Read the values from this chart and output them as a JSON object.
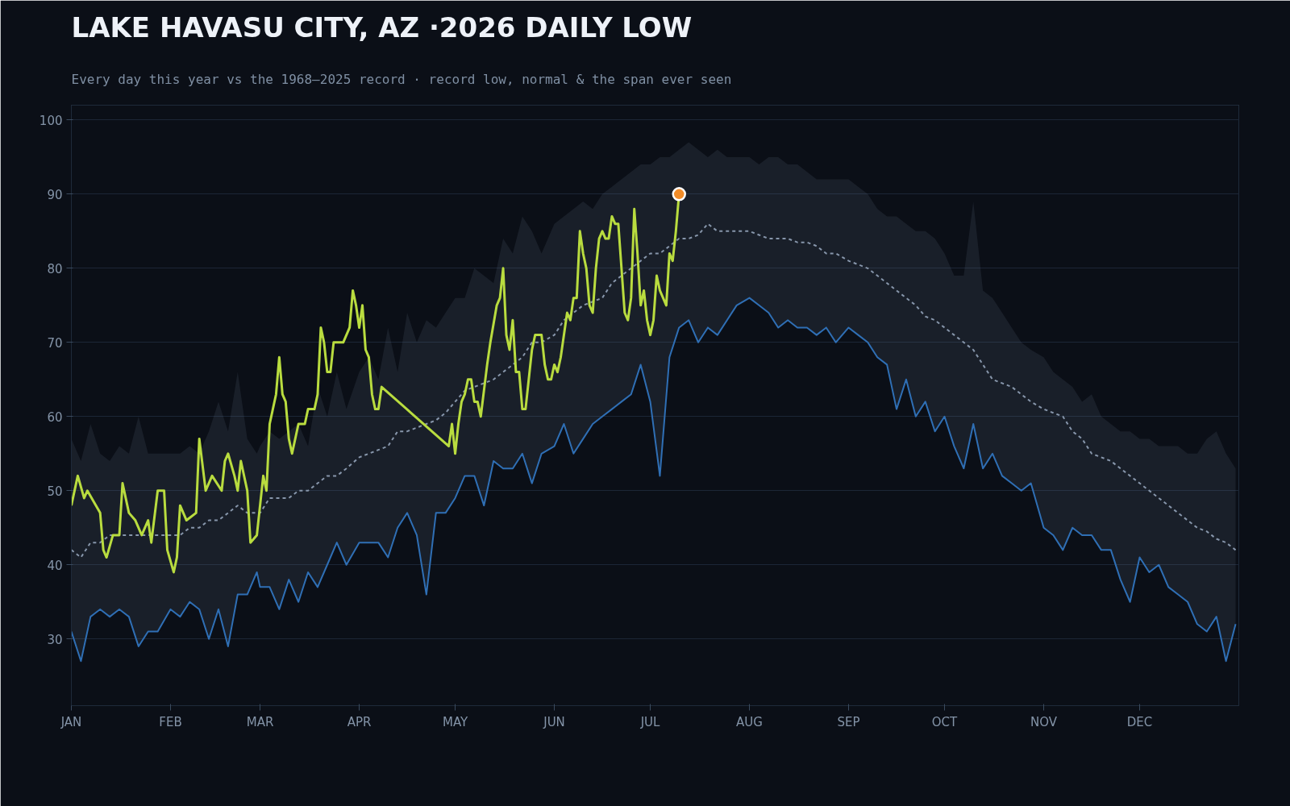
{
  "chart_data": {
    "type": "line",
    "title": "LAKE HAVASU CITY, AZ ·2026 DAILY LOW",
    "subtitle": "Every day this year vs the 1968–2025 record · record low, normal & the span ever seen",
    "xlim": [
      "2026-01-01",
      "2027-01-01"
    ],
    "ylim": [
      21,
      102
    ],
    "yticks": [
      30,
      40,
      50,
      60,
      70,
      80,
      90,
      100
    ],
    "xticks": [
      {
        "value": "2026-01-01",
        "label": "JAN"
      },
      {
        "value": "2026-02-01",
        "label": "FEB"
      },
      {
        "value": "2026-03-01",
        "label": "MAR"
      },
      {
        "value": "2026-04-01",
        "label": "APR"
      },
      {
        "value": "2026-05-01",
        "label": "MAY"
      },
      {
        "value": "2026-06-01",
        "label": "JUN"
      },
      {
        "value": "2026-07-01",
        "label": "JUL"
      },
      {
        "value": "2026-08-01",
        "label": "AUG"
      },
      {
        "value": "2026-09-01",
        "label": "SEP"
      },
      {
        "value": "2026-10-01",
        "label": "OCT"
      },
      {
        "value": "2026-11-01",
        "label": "NOV"
      },
      {
        "value": "2026-12-01",
        "label": "DEC"
      }
    ],
    "grid": "y",
    "x": [
      "2026-01-01",
      "2026-01-04",
      "2026-01-07",
      "2026-01-10",
      "2026-01-13",
      "2026-01-16",
      "2026-01-19",
      "2026-01-22",
      "2026-01-25",
      "2026-01-28",
      "2026-02-01",
      "2026-02-04",
      "2026-02-07",
      "2026-02-10",
      "2026-02-13",
      "2026-02-16",
      "2026-02-19",
      "2026-02-22",
      "2026-02-25",
      "2026-02-28",
      "2026-03-01",
      "2026-03-04",
      "2026-03-07",
      "2026-03-10",
      "2026-03-13",
      "2026-03-16",
      "2026-03-19",
      "2026-03-22",
      "2026-03-25",
      "2026-03-28",
      "2026-04-01",
      "2026-04-04",
      "2026-04-07",
      "2026-04-10",
      "2026-04-13",
      "2026-04-16",
      "2026-04-19",
      "2026-04-22",
      "2026-04-25",
      "2026-04-28",
      "2026-05-01",
      "2026-05-04",
      "2026-05-07",
      "2026-05-10",
      "2026-05-13",
      "2026-05-16",
      "2026-05-19",
      "2026-05-22",
      "2026-05-25",
      "2026-05-28",
      "2026-06-01",
      "2026-06-04",
      "2026-06-07",
      "2026-06-10",
      "2026-06-13",
      "2026-06-16",
      "2026-06-19",
      "2026-06-22",
      "2026-06-25",
      "2026-06-28",
      "2026-07-01",
      "2026-07-04",
      "2026-07-07",
      "2026-07-10",
      "2026-07-13",
      "2026-07-16",
      "2026-07-19",
      "2026-07-22",
      "2026-07-25",
      "2026-07-28",
      "2026-08-01",
      "2026-08-04",
      "2026-08-07",
      "2026-08-10",
      "2026-08-13",
      "2026-08-16",
      "2026-08-19",
      "2026-08-22",
      "2026-08-25",
      "2026-08-28",
      "2026-09-01",
      "2026-09-04",
      "2026-09-07",
      "2026-09-10",
      "2026-09-13",
      "2026-09-16",
      "2026-09-19",
      "2026-09-22",
      "2026-09-25",
      "2026-09-28",
      "2026-10-01",
      "2026-10-04",
      "2026-10-07",
      "2026-10-10",
      "2026-10-13",
      "2026-10-16",
      "2026-10-19",
      "2026-10-22",
      "2026-10-25",
      "2026-10-28",
      "2026-11-01",
      "2026-11-04",
      "2026-11-07",
      "2026-11-10",
      "2026-11-13",
      "2026-11-16",
      "2026-11-19",
      "2026-11-22",
      "2026-11-25",
      "2026-11-28",
      "2026-12-01",
      "2026-12-04",
      "2026-12-07",
      "2026-12-10",
      "2026-12-13",
      "2026-12-16",
      "2026-12-19",
      "2026-12-22",
      "2026-12-25",
      "2026-12-28",
      "2026-12-31"
    ],
    "series": [
      {
        "line_style": "dashed",
        "color": "#8796ab",
        "values": [
          42,
          41,
          43,
          43,
          44,
          44,
          44,
          44,
          44,
          44,
          44,
          44,
          45,
          45,
          46,
          46,
          47,
          48,
          47,
          47,
          47,
          49,
          49,
          49,
          50,
          50,
          51,
          52,
          52,
          53,
          54.5,
          55,
          55.5,
          56,
          58,
          58,
          58.5,
          59,
          59.5,
          60.5,
          62,
          63.5,
          64,
          64.5,
          65,
          66,
          67,
          68,
          70,
          70,
          71,
          73,
          74,
          75,
          75.5,
          76,
          78,
          79,
          80,
          81,
          82,
          82,
          83,
          84,
          84,
          84.5,
          86,
          85,
          85,
          85,
          85,
          84.5,
          84,
          84,
          84,
          83.5,
          83.5,
          83,
          82,
          82,
          81,
          80.5,
          80,
          79,
          78,
          77,
          76,
          75,
          73.5,
          73,
          72,
          71,
          70,
          69,
          67,
          65,
          64.5,
          64,
          63,
          62,
          61,
          60.5,
          60,
          58,
          57,
          55,
          54.5,
          54,
          53,
          52,
          51,
          50,
          49,
          48,
          47,
          46,
          45,
          44.5,
          43.5,
          43,
          42
        ],
        "lower": [
          31,
          27,
          33,
          34,
          33,
          34,
          33,
          29,
          31,
          31,
          34,
          33,
          35,
          34,
          30,
          34,
          29,
          36,
          36,
          39,
          37,
          37,
          34,
          38,
          35,
          39,
          37,
          40,
          43,
          40,
          43,
          43,
          43,
          41,
          45,
          47,
          44,
          36,
          47,
          47,
          49,
          52,
          52,
          48,
          54,
          53,
          53,
          55,
          51,
          55,
          56,
          59,
          55,
          57,
          59,
          60,
          61,
          62,
          63,
          67,
          62,
          52,
          68,
          72,
          73,
          70,
          72,
          71,
          73,
          75,
          76,
          75,
          74,
          72,
          73,
          72,
          72,
          71,
          72,
          70,
          72,
          71,
          70,
          68,
          67,
          61,
          65,
          60,
          62,
          58,
          60,
          56,
          53,
          59,
          53,
          55,
          52,
          51,
          50,
          51,
          45,
          44,
          42,
          45,
          44,
          44,
          42,
          42,
          38,
          35,
          41,
          39,
          40,
          37,
          36,
          35,
          32,
          31,
          33,
          27,
          32
        ],
        "upper": [
          57,
          54,
          59,
          55,
          54,
          56,
          55,
          60,
          55,
          55,
          55,
          55,
          56,
          55,
          58,
          62,
          58,
          66,
          57,
          55,
          56,
          58,
          57,
          58,
          59,
          56,
          64,
          60,
          66,
          61,
          66,
          68,
          65,
          72,
          66,
          74,
          70,
          73,
          72,
          74,
          76,
          76,
          80,
          79,
          78,
          84,
          82,
          87,
          85,
          82,
          86,
          87,
          88,
          89,
          88,
          90,
          91,
          92,
          93,
          94,
          94,
          95,
          95,
          96,
          97,
          96,
          95,
          96,
          95,
          95,
          95,
          94,
          95,
          95,
          94,
          94,
          93,
          92,
          92,
          92,
          92,
          91,
          90,
          88,
          87,
          87,
          86,
          85,
          85,
          84,
          82,
          79,
          79,
          89,
          77,
          76,
          74,
          72,
          70,
          69,
          68,
          66,
          65,
          64,
          62,
          63,
          60,
          59,
          58,
          58,
          57,
          57,
          56,
          56,
          56,
          55,
          55,
          57,
          58,
          55,
          53
        ]
      },
      {
        "line_style": "solid",
        "color": "#2f6fb5",
        "values": [
          31,
          27,
          33,
          34,
          33,
          34,
          33,
          29,
          31,
          31,
          34,
          33,
          35,
          34,
          30,
          34,
          29,
          36,
          36,
          39,
          37,
          37,
          34,
          38,
          35,
          39,
          37,
          40,
          43,
          40,
          43,
          43,
          43,
          41,
          45,
          47,
          44,
          36,
          47,
          47,
          49,
          52,
          52,
          48,
          54,
          53,
          53,
          55,
          51,
          55,
          56,
          59,
          55,
          57,
          59,
          60,
          61,
          62,
          63,
          67,
          62,
          52,
          68,
          72,
          73,
          70,
          72,
          71,
          73,
          75,
          76,
          75,
          74,
          72,
          73,
          72,
          72,
          71,
          72,
          70,
          72,
          71,
          70,
          68,
          67,
          61,
          65,
          60,
          62,
          58,
          60,
          56,
          53,
          59,
          53,
          55,
          52,
          51,
          50,
          51,
          45,
          44,
          42,
          45,
          44,
          44,
          42,
          42,
          38,
          35,
          41,
          39,
          40,
          37,
          36,
          35,
          32,
          31,
          33,
          27,
          32
        ]
      },
      {
        "line_style": "solid",
        "color": "#b9dc3f",
        "x": [
          "2026-01-01",
          "2026-01-03",
          "2026-01-05",
          "2026-01-06",
          "2026-01-10",
          "2026-01-11",
          "2026-01-12",
          "2026-01-14",
          "2026-01-16",
          "2026-01-17",
          "2026-01-19",
          "2026-01-21",
          "2026-01-23",
          "2026-01-25",
          "2026-01-26",
          "2026-01-28",
          "2026-01-30",
          "2026-01-31",
          "2026-02-02",
          "2026-02-03",
          "2026-02-04",
          "2026-02-06",
          "2026-02-09",
          "2026-02-10",
          "2026-02-12",
          "2026-02-14",
          "2026-02-17",
          "2026-02-18",
          "2026-02-19",
          "2026-02-21",
          "2026-02-22",
          "2026-02-23",
          "2026-02-25",
          "2026-02-26",
          "2026-02-28",
          "2026-03-02",
          "2026-03-03",
          "2026-03-04",
          "2026-03-06",
          "2026-03-07",
          "2026-03-08",
          "2026-03-09",
          "2026-03-10",
          "2026-03-11",
          "2026-03-13",
          "2026-03-15",
          "2026-03-16",
          "2026-03-18",
          "2026-03-19",
          "2026-03-20",
          "2026-03-21",
          "2026-03-22",
          "2026-03-23",
          "2026-03-24",
          "2026-03-27",
          "2026-03-29",
          "2026-03-30",
          "2026-03-31",
          "2026-04-01",
          "2026-04-02",
          "2026-04-03",
          "2026-04-04",
          "2026-04-05",
          "2026-04-06",
          "2026-04-07",
          "2026-04-08",
          "2026-04-29",
          "2026-04-30",
          "2026-05-01",
          "2026-05-02",
          "2026-05-03",
          "2026-05-04",
          "2026-05-05",
          "2026-05-06",
          "2026-05-07",
          "2026-05-08",
          "2026-05-09",
          "2026-05-11",
          "2026-05-12",
          "2026-05-14",
          "2026-05-15",
          "2026-05-16",
          "2026-05-17",
          "2026-05-18",
          "2026-05-19",
          "2026-05-20",
          "2026-05-21",
          "2026-05-22",
          "2026-05-23",
          "2026-05-25",
          "2026-05-26",
          "2026-05-28",
          "2026-05-29",
          "2026-05-30",
          "2026-05-31",
          "2026-06-01",
          "2026-06-02",
          "2026-06-03",
          "2026-06-05",
          "2026-06-06",
          "2026-06-07",
          "2026-06-08",
          "2026-06-09",
          "2026-06-10",
          "2026-06-11",
          "2026-06-12",
          "2026-06-13",
          "2026-06-14",
          "2026-06-15",
          "2026-06-16",
          "2026-06-17",
          "2026-06-18",
          "2026-06-19",
          "2026-06-20",
          "2026-06-21",
          "2026-06-22",
          "2026-06-23",
          "2026-06-24",
          "2026-06-25",
          "2026-06-26",
          "2026-06-27",
          "2026-06-28",
          "2026-06-29",
          "2026-06-30",
          "2026-07-01",
          "2026-07-02",
          "2026-07-03",
          "2026-07-04",
          "2026-07-05",
          "2026-07-06",
          "2026-07-07",
          "2026-07-08",
          "2026-07-09",
          "2026-07-10"
        ],
        "values": [
          48,
          52,
          49,
          50,
          47,
          42,
          41,
          44,
          44,
          51,
          47,
          46,
          44,
          46,
          43,
          50,
          50,
          42,
          39,
          41,
          48,
          46,
          47,
          57,
          50,
          52,
          50,
          54,
          55,
          52,
          50,
          54,
          50,
          43,
          44,
          52,
          50,
          59,
          63,
          68,
          63,
          62,
          57,
          55,
          59,
          59,
          61,
          61,
          63,
          72,
          70,
          66,
          66,
          70,
          70,
          72,
          77,
          75,
          72,
          75,
          69,
          68,
          63,
          61,
          61,
          64,
          56,
          59,
          55,
          59,
          62,
          63,
          65,
          65,
          62,
          62,
          60,
          67,
          70,
          75,
          76,
          80,
          71,
          69,
          73,
          66,
          66,
          61,
          61,
          69,
          71,
          71,
          67,
          65,
          65,
          67,
          66,
          68,
          74,
          73,
          76,
          76,
          85,
          82,
          80,
          75,
          74,
          80,
          84,
          85,
          84,
          84,
          87,
          86,
          86,
          80,
          74,
          73,
          76,
          88,
          82,
          75,
          77,
          73,
          71,
          73,
          79,
          77,
          76,
          75,
          82,
          81,
          85,
          90
        ]
      },
      {
        "type": "scatter",
        "marker": "circle",
        "color": "#f28c28",
        "x": [
          "2026-07-10"
        ],
        "values": [
          90
        ]
      }
    ]
  }
}
